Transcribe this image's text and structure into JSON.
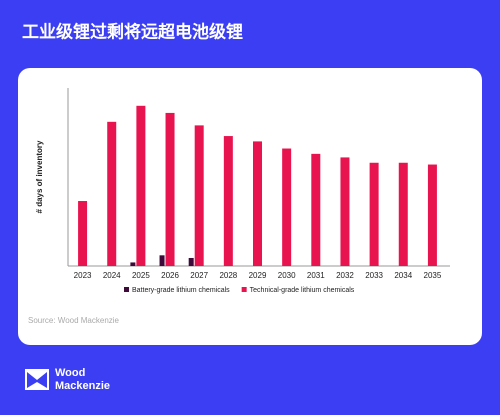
{
  "chart_data": {
    "type": "bar",
    "title": "工业级锂过剩将远超电池级锂",
    "y_label": "# days of inventory",
    "categories": [
      "2023",
      "2024",
      "2025",
      "2026",
      "2027",
      "2028",
      "2029",
      "2030",
      "2031",
      "2032",
      "2033",
      "2034",
      "2035"
    ],
    "series": [
      {
        "name": "Battery-grade lithium chemicals",
        "color": "#3d0a3a",
        "values": [
          null,
          null,
          2,
          6,
          4.5,
          null,
          null,
          null,
          null,
          null,
          null,
          null,
          null
        ]
      },
      {
        "name": "Technical-grade lithium chemicals",
        "color": "#e8144f",
        "values": [
          36.5,
          81,
          90,
          86,
          79,
          73,
          70,
          66,
          63,
          61,
          58,
          58,
          57
        ]
      }
    ],
    "ylim": [
      0,
      100
    ],
    "source": "Source: Wood Mackenzie"
  },
  "logo": [
    "Wood",
    "Mackenzie"
  ]
}
